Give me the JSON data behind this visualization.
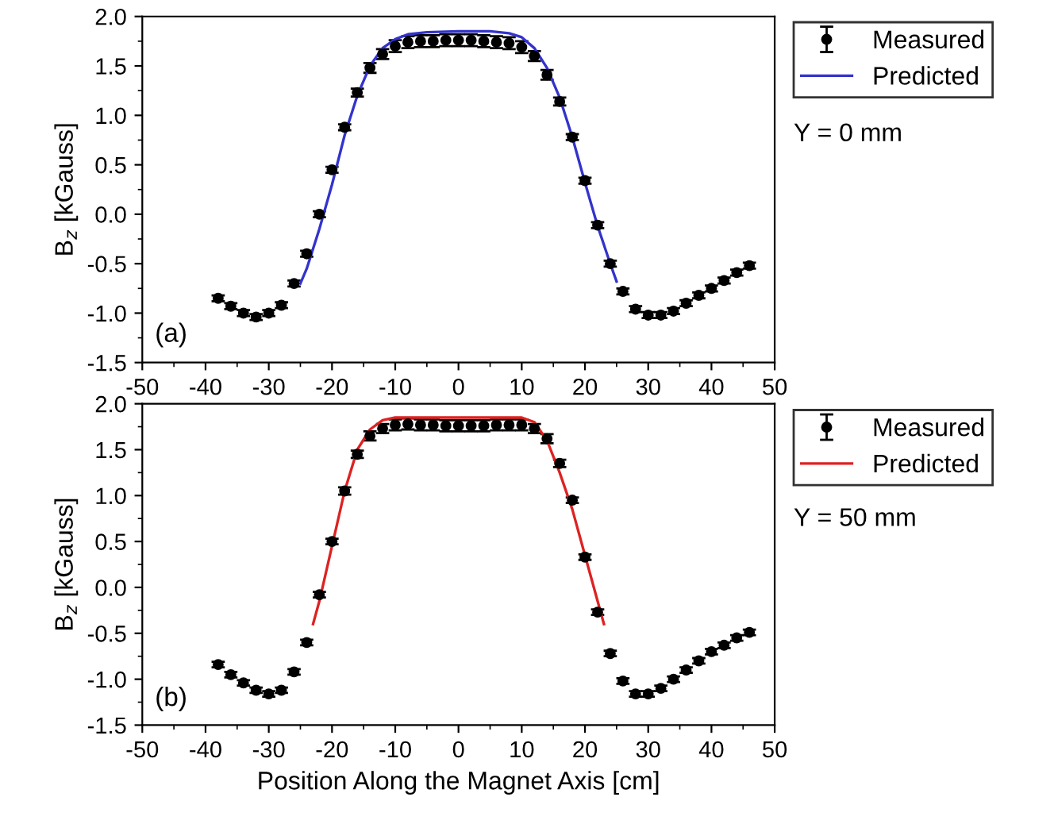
{
  "chart_data": [
    {
      "type": "scatter",
      "ylabel": "B$_{z}$ [kGauss]",
      "annotations": [
        "(a)",
        "Y = 0 mm"
      ],
      "xlim": [
        -50,
        50
      ],
      "xticks": [
        -50,
        -40,
        -30,
        -20,
        -10,
        0,
        10,
        20,
        30,
        40,
        50
      ],
      "ylim": [
        -1.5,
        2.0
      ],
      "yticks": [
        -1.5,
        {
          "value": -1,
          "label": "-1.0"
        },
        -0.5,
        {
          "value": 0,
          "label": "0.0"
        },
        0.5,
        {
          "value": 1,
          "label": "1.0"
        },
        1.5,
        {
          "value": 2,
          "label": "2.0"
        }
      ],
      "legend": "right",
      "grid": false,
      "series": [
        {
          "name": "Measured",
          "color": "#000000",
          "marker": "circle",
          "x": [
            -38,
            -36,
            -34,
            -32,
            -30,
            -28,
            -26,
            -24,
            -22,
            -20,
            -18,
            -16,
            -14,
            -12,
            -10,
            -8,
            -6,
            -4,
            -2,
            0,
            2,
            4,
            6,
            8,
            10,
            12,
            14,
            16,
            18,
            20,
            22,
            24,
            26,
            28,
            30,
            32,
            34,
            36,
            38,
            40,
            42,
            44,
            46
          ],
          "values": [
            -0.85,
            -0.93,
            -1.0,
            -1.04,
            -1.0,
            -0.92,
            -0.7,
            -0.4,
            0.0,
            0.45,
            0.88,
            1.23,
            1.48,
            1.62,
            1.7,
            1.74,
            1.75,
            1.75,
            1.76,
            1.76,
            1.76,
            1.75,
            1.74,
            1.73,
            1.69,
            1.6,
            1.41,
            1.14,
            0.78,
            0.34,
            -0.11,
            -0.5,
            -0.78,
            -0.96,
            -1.02,
            -1.02,
            -0.98,
            -0.9,
            -0.82,
            -0.75,
            -0.67,
            -0.59,
            -0.52
          ],
          "errors": [
            0.03,
            0.03,
            0.03,
            0.03,
            0.03,
            0.03,
            0.03,
            0.03,
            0.03,
            0.03,
            0.03,
            0.04,
            0.05,
            0.05,
            0.06,
            0.06,
            0.06,
            0.06,
            0.06,
            0.06,
            0.06,
            0.06,
            0.06,
            0.06,
            0.06,
            0.05,
            0.05,
            0.04,
            0.03,
            0.03,
            0.03,
            0.03,
            0.03,
            0.03,
            0.03,
            0.03,
            0.03,
            0.03,
            0.03,
            0.03,
            0.03,
            0.03,
            0.03
          ]
        },
        {
          "name": "Predicted",
          "type": "line",
          "color": "#3333cc",
          "marker": "none",
          "line_style": "solid",
          "x": [
            -25,
            -24,
            -22,
            -20,
            -18,
            -16,
            -14,
            -12,
            -10,
            -8,
            -5,
            0,
            5,
            8,
            10,
            12,
            14,
            16,
            18,
            20,
            22,
            24,
            25
          ],
          "values": [
            -0.7,
            -0.55,
            -0.15,
            0.3,
            0.8,
            1.2,
            1.5,
            1.68,
            1.77,
            1.82,
            1.84,
            1.85,
            1.85,
            1.83,
            1.79,
            1.68,
            1.48,
            1.18,
            0.78,
            0.32,
            -0.12,
            -0.5,
            -0.68
          ]
        }
      ]
    },
    {
      "type": "scatter",
      "xlabel": "Position Along the Magnet Axis [cm]",
      "ylabel": "B$_{z}$ [kGauss]",
      "annotations": [
        "(b)",
        "Y = 50 mm"
      ],
      "xlim": [
        -50,
        50
      ],
      "xticks": [
        -50,
        -40,
        -30,
        -20,
        -10,
        0,
        10,
        20,
        30,
        40,
        50
      ],
      "ylim": [
        -1.5,
        2.0
      ],
      "yticks": [
        -1.5,
        {
          "value": -1,
          "label": "-1.0"
        },
        -0.5,
        {
          "value": 0,
          "label": "0.0"
        },
        0.5,
        {
          "value": 1,
          "label": "1.0"
        },
        1.5,
        {
          "value": 2,
          "label": "2.0"
        }
      ],
      "legend": "right",
      "grid": false,
      "series": [
        {
          "name": "Measured",
          "color": "#000000",
          "marker": "circle",
          "x": [
            -38,
            -36,
            -34,
            -32,
            -30,
            -28,
            -26,
            -24,
            -22,
            -20,
            -18,
            -16,
            -14,
            -12,
            -10,
            -8,
            -6,
            -4,
            -2,
            0,
            2,
            4,
            6,
            8,
            10,
            12,
            14,
            16,
            18,
            20,
            22,
            24,
            26,
            28,
            30,
            32,
            34,
            36,
            38,
            40,
            42,
            44,
            46
          ],
          "values": [
            -0.84,
            -0.95,
            -1.04,
            -1.12,
            -1.16,
            -1.12,
            -0.92,
            -0.6,
            -0.08,
            0.5,
            1.05,
            1.45,
            1.65,
            1.73,
            1.77,
            1.78,
            1.77,
            1.77,
            1.76,
            1.76,
            1.76,
            1.76,
            1.77,
            1.77,
            1.77,
            1.73,
            1.62,
            1.35,
            0.95,
            0.33,
            -0.27,
            -0.72,
            -1.02,
            -1.16,
            -1.16,
            -1.1,
            -1.0,
            -0.9,
            -0.8,
            -0.7,
            -0.63,
            -0.55,
            -0.49
          ],
          "errors": [
            0.03,
            0.03,
            0.03,
            0.03,
            0.03,
            0.03,
            0.03,
            0.03,
            0.03,
            0.03,
            0.04,
            0.04,
            0.05,
            0.05,
            0.06,
            0.06,
            0.06,
            0.06,
            0.06,
            0.06,
            0.06,
            0.06,
            0.06,
            0.06,
            0.06,
            0.05,
            0.05,
            0.04,
            0.03,
            0.03,
            0.03,
            0.03,
            0.03,
            0.03,
            0.03,
            0.03,
            0.03,
            0.03,
            0.03,
            0.03,
            0.03,
            0.03,
            0.03
          ]
        },
        {
          "name": "Predicted",
          "type": "line",
          "color": "#dd2222",
          "marker": "none",
          "line_style": "solid",
          "x": [
            -23,
            -22,
            -20,
            -18,
            -16,
            -14,
            -12,
            -10,
            0,
            10,
            12,
            14,
            16,
            18,
            20,
            22,
            23
          ],
          "values": [
            -0.4,
            -0.15,
            0.45,
            1.05,
            1.5,
            1.72,
            1.82,
            1.85,
            1.85,
            1.85,
            1.8,
            1.6,
            1.25,
            0.85,
            0.35,
            -0.15,
            -0.4
          ]
        }
      ]
    }
  ]
}
